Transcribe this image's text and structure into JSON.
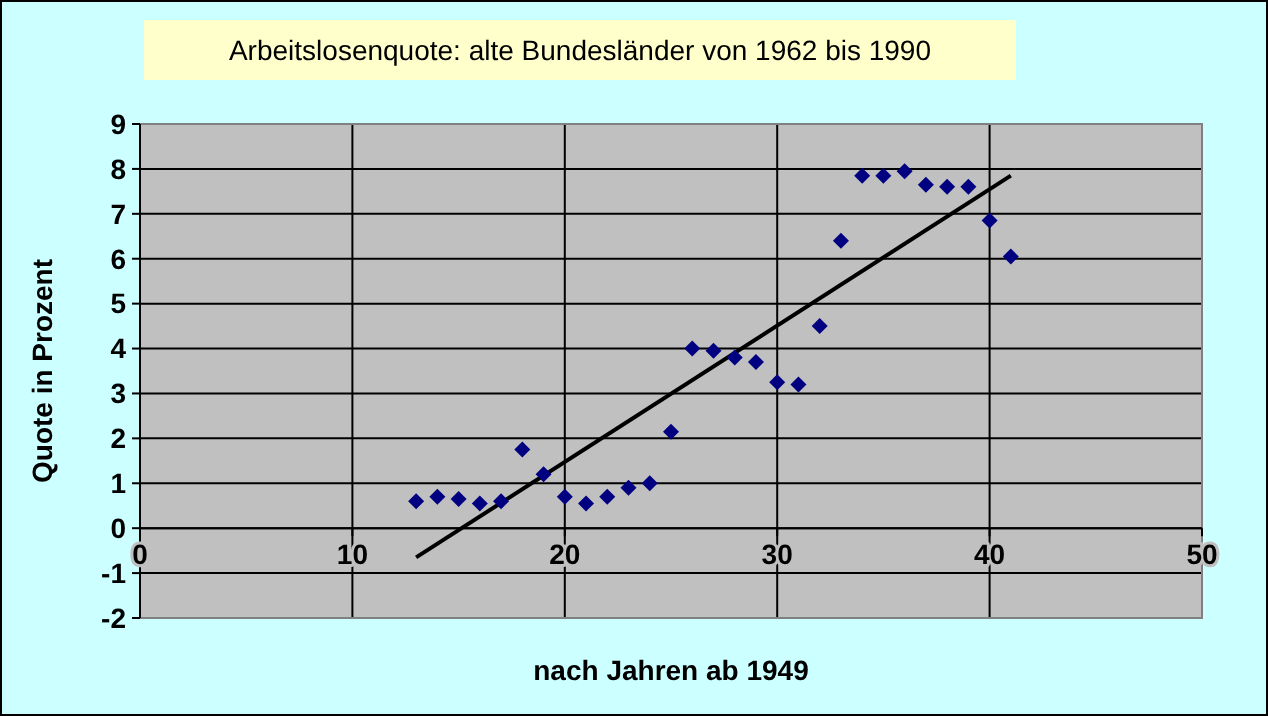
{
  "chart_data": {
    "type": "scatter",
    "title": "Arbeitslosenquote: alte Bundesländer von 1962 bis 1990",
    "xlabel": "nach Jahren ab 1949",
    "ylabel": "Quote in Prozent",
    "xlim": [
      0,
      50
    ],
    "xticks": [
      0,
      10,
      20,
      30,
      40,
      50
    ],
    "ylim": [
      -2,
      9
    ],
    "yticks": [
      -2,
      -1,
      0,
      1,
      2,
      3,
      4,
      5,
      6,
      7,
      8,
      9
    ],
    "grid": true,
    "marker": "diamond",
    "series": [
      {
        "color": "#000080",
        "x": [
          13,
          14,
          15,
          16,
          17,
          18,
          19,
          20,
          21,
          22,
          23,
          24,
          25,
          26,
          27,
          28,
          29,
          30,
          31,
          32,
          33,
          34,
          35,
          36,
          37,
          38,
          39,
          40,
          41
        ],
        "values": [
          0.6,
          0.7,
          0.65,
          0.55,
          0.6,
          1.75,
          1.2,
          0.7,
          0.55,
          0.7,
          0.9,
          1.0,
          2.15,
          4.0,
          3.95,
          3.8,
          3.7,
          3.25,
          3.2,
          4.5,
          6.4,
          7.85,
          7.85,
          7.95,
          7.65,
          7.6,
          7.6,
          6.85,
          6.05
        ]
      },
      {
        "type": "line",
        "marker": "none",
        "color": "#000000",
        "x": [
          13,
          41
        ],
        "values": [
          -0.65,
          7.85
        ]
      }
    ]
  }
}
